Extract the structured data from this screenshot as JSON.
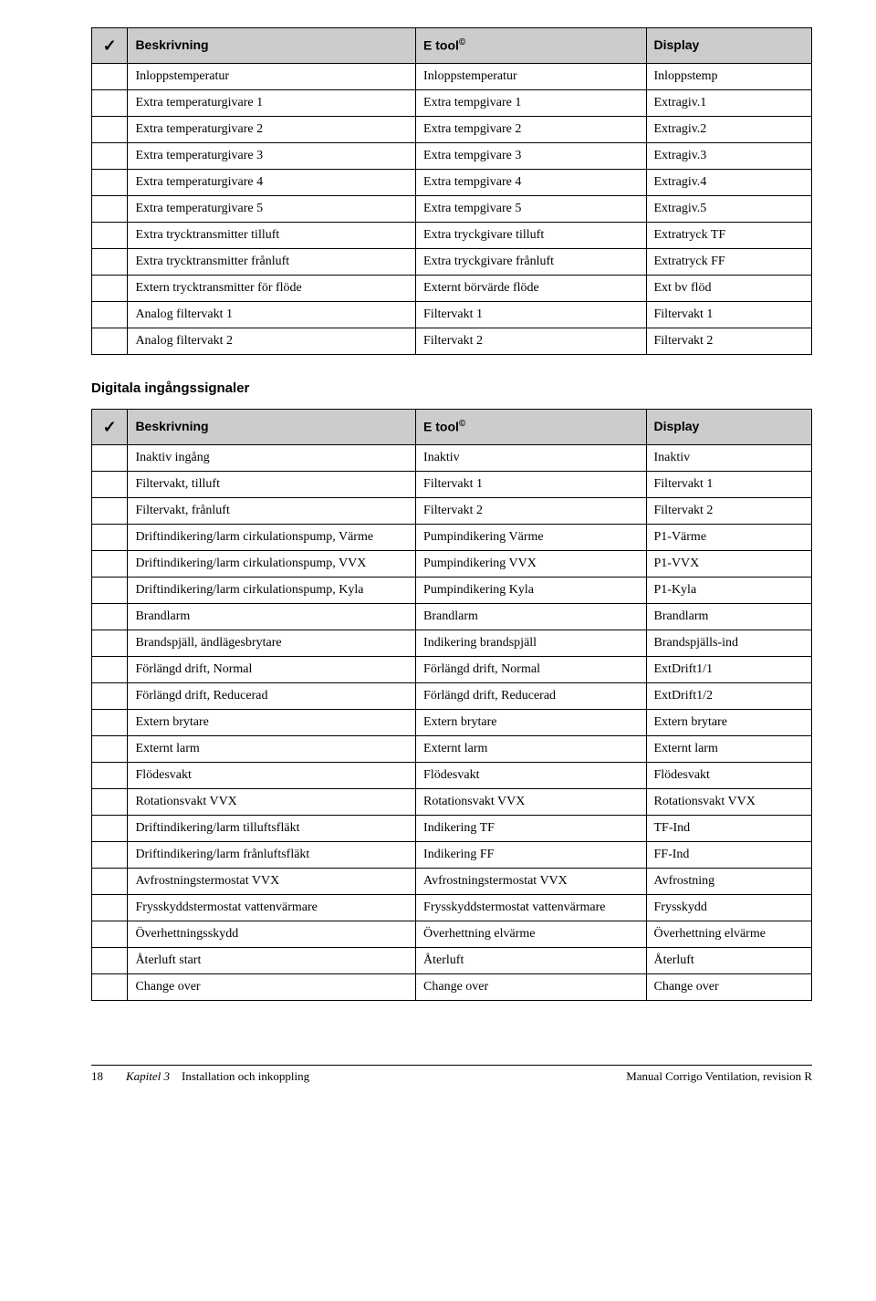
{
  "table1": {
    "headers": {
      "check": "✓",
      "c1": "Beskrivning",
      "c2": "E tool",
      "c2_sup": "©",
      "c3": "Display"
    },
    "rows": [
      {
        "c1": "Inloppstemperatur",
        "c2": "Inloppstemperatur",
        "c3": "Inloppstemp"
      },
      {
        "c1": "Extra temperaturgivare 1",
        "c2": "Extra tempgivare 1",
        "c3": "Extragiv.1"
      },
      {
        "c1": "Extra temperaturgivare 2",
        "c2": "Extra tempgivare 2",
        "c3": "Extragiv.2"
      },
      {
        "c1": "Extra temperaturgivare 3",
        "c2": "Extra tempgivare 3",
        "c3": "Extragiv.3"
      },
      {
        "c1": "Extra temperaturgivare 4",
        "c2": "Extra tempgivare 4",
        "c3": "Extragiv.4"
      },
      {
        "c1": "Extra temperaturgivare 5",
        "c2": "Extra tempgivare 5",
        "c3": "Extragiv.5"
      },
      {
        "c1": "Extra trycktransmitter tilluft",
        "c2": "Extra tryckgivare tilluft",
        "c3": "Extratryck TF"
      },
      {
        "c1": "Extra trycktransmitter frånluft",
        "c2": "Extra tryckgivare frånluft",
        "c3": "Extratryck FF"
      },
      {
        "c1": "Extern trycktransmitter för flöde",
        "c2": "Externt börvärde flöde",
        "c3": "Ext bv flöd"
      },
      {
        "c1": "Analog filtervakt 1",
        "c2": "Filtervakt 1",
        "c3": "Filtervakt 1"
      },
      {
        "c1": "Analog filtervakt 2",
        "c2": "Filtervakt 2",
        "c3": "Filtervakt 2"
      }
    ]
  },
  "section2_title": "Digitala ingångssignaler",
  "table2": {
    "headers": {
      "check": "✓",
      "c1": "Beskrivning",
      "c2": "E tool",
      "c2_sup": "©",
      "c3": "Display"
    },
    "rows": [
      {
        "c1": "Inaktiv ingång",
        "c2": "Inaktiv",
        "c3": "Inaktiv"
      },
      {
        "c1": "Filtervakt, tilluft",
        "c2": "Filtervakt 1",
        "c3": "Filtervakt 1"
      },
      {
        "c1": "Filtervakt, frånluft",
        "c2": "Filtervakt 2",
        "c3": "Filtervakt 2"
      },
      {
        "c1": "Driftindikering/larm cirkulationspump, Värme",
        "c2": "Pumpindikering Värme",
        "c3": "P1-Värme"
      },
      {
        "c1": "Driftindikering/larm cirkulationspump, VVX",
        "c2": "Pumpindikering VVX",
        "c3": "P1-VVX"
      },
      {
        "c1": "Driftindikering/larm cirkulationspump, Kyla",
        "c2": "Pumpindikering Kyla",
        "c3": "P1-Kyla"
      },
      {
        "c1": "Brandlarm",
        "c2": "Brandlarm",
        "c3": "Brandlarm"
      },
      {
        "c1": "Brandspjäll, ändlägesbrytare",
        "c2": "Indikering brandspjäll",
        "c3": "Brandspjälls-ind"
      },
      {
        "c1": "Förlängd drift, Normal",
        "c2": "Förlängd drift, Normal",
        "c3": "ExtDrift1/1"
      },
      {
        "c1": "Förlängd drift, Reducerad",
        "c2": "Förlängd drift, Reducerad",
        "c3": "ExtDrift1/2"
      },
      {
        "c1": "Extern brytare",
        "c2": "Extern brytare",
        "c3": "Extern brytare"
      },
      {
        "c1": "Externt larm",
        "c2": "Externt larm",
        "c3": "Externt larm"
      },
      {
        "c1": "Flödesvakt",
        "c2": "Flödesvakt",
        "c3": "Flödesvakt"
      },
      {
        "c1": "Rotationsvakt VVX",
        "c2": "Rotationsvakt VVX",
        "c3": "Rotationsvakt VVX"
      },
      {
        "c1": "Driftindikering/larm tilluftsfläkt",
        "c2": "Indikering TF",
        "c3": "TF-Ind"
      },
      {
        "c1": "Driftindikering/larm frånluftsfläkt",
        "c2": "Indikering FF",
        "c3": "FF-Ind"
      },
      {
        "c1": "Avfrostningstermostat VVX",
        "c2": "Avfrostningstermostat VVX",
        "c3": "Avfrostning"
      },
      {
        "c1": "Frysskyddstermostat vattenvärmare",
        "c2": "Frysskyddstermostat vattenvärmare",
        "c3": "Frysskydd"
      },
      {
        "c1": "Överhettningsskydd",
        "c2": "Överhettning elvärme",
        "c3": "Överhettning elvärme"
      },
      {
        "c1": "Återluft start",
        "c2": "Återluft",
        "c3": "Återluft"
      },
      {
        "c1": "Change over",
        "c2": "Change over",
        "c3": "Change over"
      }
    ]
  },
  "footer": {
    "page": "18",
    "chapter_prefix": "Kapitel 3",
    "chapter_title": "Installation och inkoppling",
    "doc_title": "Manual Corrigo Ventilation, revision R"
  },
  "col_widths": {
    "check": "5%",
    "c1": "40%",
    "c2": "32%",
    "c3": "23%"
  }
}
